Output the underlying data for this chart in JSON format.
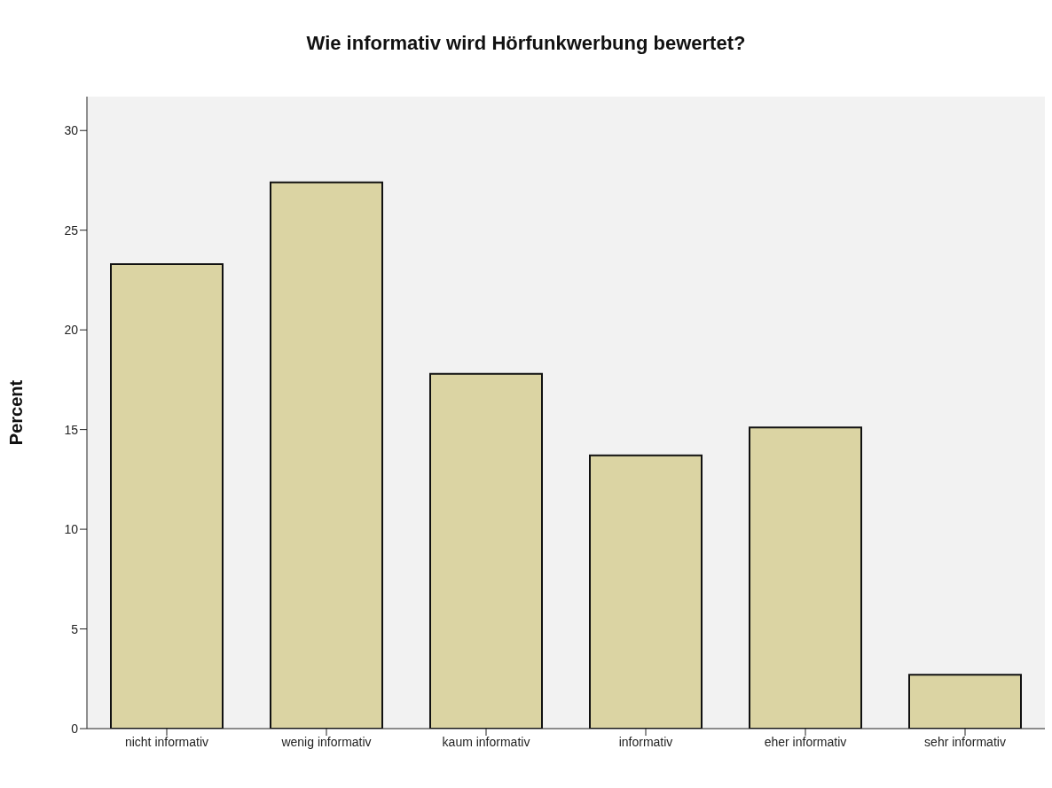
{
  "chart_data": {
    "type": "bar",
    "title": "Wie informativ wird Hörfunkwerbung bewertet?",
    "ylabel": "Percent",
    "categories": [
      "nicht informativ",
      "wenig informativ",
      "kaum informativ",
      "informativ",
      "eher informativ",
      "sehr informativ"
    ],
    "values": [
      23.3,
      27.4,
      17.8,
      13.7,
      15.1,
      2.7
    ],
    "color": "#dbd4a3",
    "ylim": [
      0,
      31.7
    ],
    "yticks": [
      0,
      5,
      10,
      15,
      20,
      25,
      30
    ],
    "grid": false
  }
}
